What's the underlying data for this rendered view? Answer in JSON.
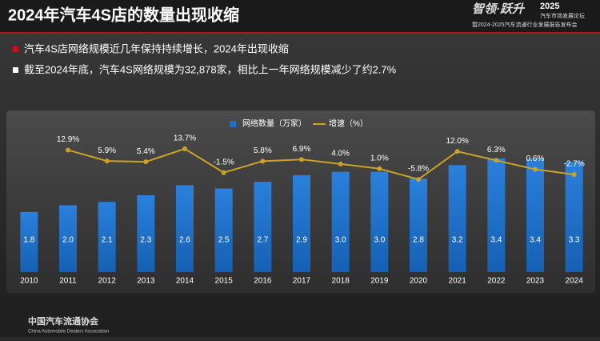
{
  "header": {
    "title": "2024年汽车4S店的数量出现收缩",
    "logo_title": "智领·跃升",
    "logo_year": "2025",
    "logo_line1": "汽车市场发展论坛",
    "logo_line2": "暨2024-2025汽车流通行业发展报告发布会"
  },
  "bullets": [
    "汽车4S店网络规模近几年保持持续增长，2024年出现收缩",
    "截至2024年底，汽车4S网络规模为32,878家，相比上一年网络规模减少了约2.7%"
  ],
  "footer": {
    "org": "中国汽车流通协会",
    "org_en": "China Automobile Dealers Association"
  },
  "chart_data": {
    "type": "bar_line",
    "categories": [
      "2010",
      "2011",
      "2012",
      "2013",
      "2014",
      "2015",
      "2016",
      "2017",
      "2018",
      "2019",
      "2020",
      "2021",
      "2022",
      "2023",
      "2024"
    ],
    "series": [
      {
        "name": "网络数量（万家）",
        "type": "bar",
        "color": "#1f6fc8",
        "values": [
          1.8,
          2.0,
          2.1,
          2.3,
          2.6,
          2.5,
          2.7,
          2.9,
          3.0,
          3.0,
          2.8,
          3.2,
          3.4,
          3.4,
          3.3
        ],
        "value_labels": [
          "1.8",
          "2.0",
          "2.1",
          "2.3",
          "2.6",
          "2.5",
          "2.7",
          "2.9",
          "3.0",
          "3.0",
          "2.8",
          "3.2",
          "3.4",
          "3.4",
          "3.3"
        ]
      },
      {
        "name": "增速（%）",
        "type": "line",
        "axis": "y2",
        "color": "#c9a227",
        "values": [
          null,
          12.9,
          5.9,
          5.4,
          13.7,
          -1.5,
          5.8,
          6.9,
          4.0,
          1.0,
          -5.8,
          12.0,
          6.3,
          0.6,
          -2.7
        ],
        "value_labels": [
          null,
          "12.9%",
          "5.9%",
          "5.4%",
          "13.7%",
          "-1.5%",
          "5.8%",
          "6.9%",
          "4.0%",
          "1.0%",
          "-5.8%",
          "12.0%",
          "6.3%",
          "0.6%",
          "-2.7%"
        ]
      }
    ],
    "ylim": [
      0,
      4.5
    ],
    "y2lim": [
      -65,
      31
    ]
  }
}
